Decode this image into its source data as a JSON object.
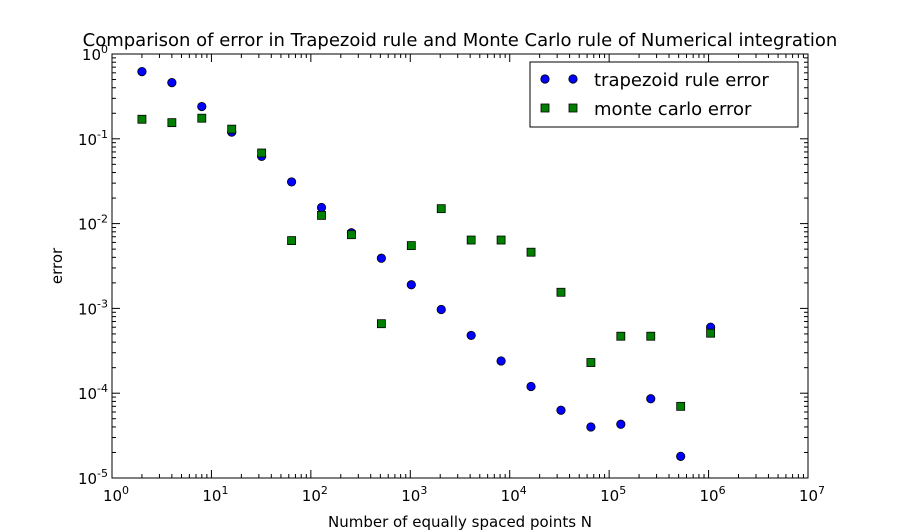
{
  "chart_data": {
    "type": "scatter",
    "title": "Comparison of error in Trapezoid rule and Monte Carlo rule of Numerical integration",
    "xlabel": "Number of equally spaced points N",
    "ylabel": "error",
    "xscale": "log",
    "yscale": "log",
    "xlim": [
      1,
      10000000
    ],
    "ylim": [
      1e-05,
      1
    ],
    "grid": false,
    "legend_position": "top-right",
    "x_ticks": [
      {
        "base": "10",
        "exp": "0",
        "value": 1
      },
      {
        "base": "10",
        "exp": "1",
        "value": 10
      },
      {
        "base": "10",
        "exp": "2",
        "value": 100
      },
      {
        "base": "10",
        "exp": "3",
        "value": 1000
      },
      {
        "base": "10",
        "exp": "4",
        "value": 10000
      },
      {
        "base": "10",
        "exp": "5",
        "value": 100000
      },
      {
        "base": "10",
        "exp": "6",
        "value": 1000000
      },
      {
        "base": "10",
        "exp": "7",
        "value": 10000000
      }
    ],
    "y_ticks": [
      {
        "base": "10",
        "exp": "0",
        "value": 1
      },
      {
        "base": "10",
        "exp": "-1",
        "value": 0.1
      },
      {
        "base": "10",
        "exp": "-2",
        "value": 0.01
      },
      {
        "base": "10",
        "exp": "-3",
        "value": 0.001
      },
      {
        "base": "10",
        "exp": "-4",
        "value": 0.0001
      },
      {
        "base": "10",
        "exp": "-5",
        "value": 1e-05
      }
    ],
    "series": [
      {
        "name": "trapezoid rule error",
        "marker": "circle",
        "color": "#0000ff",
        "x": [
          2,
          4,
          8,
          16,
          32,
          64,
          128,
          256,
          512,
          1024,
          2048,
          4096,
          8192,
          16384,
          32768,
          65536,
          131072,
          262144,
          524288,
          1048576
        ],
        "y": [
          0.62,
          0.46,
          0.24,
          0.12,
          0.062,
          0.031,
          0.0155,
          0.0078,
          0.0039,
          0.0019,
          0.00097,
          0.00048,
          0.00024,
          0.00012,
          6.3e-05,
          4e-05,
          4.3e-05,
          8.6e-05,
          1.8e-05,
          0.0006
        ]
      },
      {
        "name": "monte carlo error",
        "marker": "square",
        "color": "#008000",
        "x": [
          2,
          4,
          8,
          16,
          32,
          64,
          128,
          256,
          512,
          1024,
          2048,
          4096,
          8192,
          16384,
          32768,
          65536,
          131072,
          262144,
          524288,
          1048576
        ],
        "y": [
          0.17,
          0.155,
          0.175,
          0.13,
          0.068,
          0.0063,
          0.0125,
          0.0074,
          0.00066,
          0.0055,
          0.015,
          0.0064,
          0.0064,
          0.0046,
          0.00155,
          0.00023,
          0.00047,
          0.00047,
          7e-05,
          0.00051
        ]
      }
    ]
  },
  "colors": {
    "axes": "#000000",
    "background": "#ffffff",
    "marker_edge": "#000000"
  }
}
